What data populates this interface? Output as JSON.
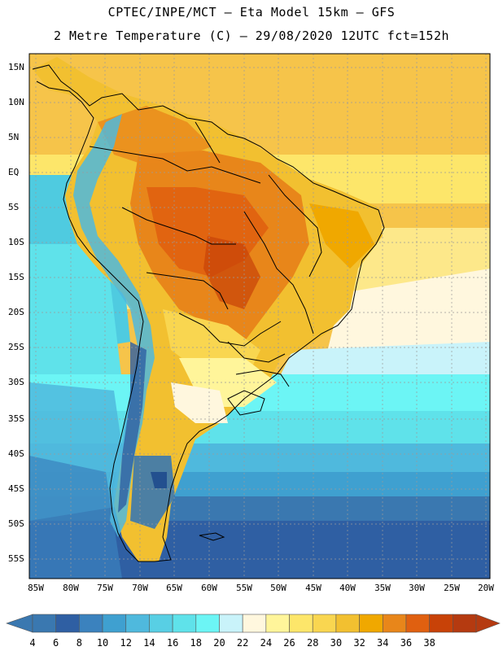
{
  "header": {
    "line1": "CPTEC/INPE/MCT –  Eta Model 15km – GFS",
    "line2": "2 Metre Temperature (C) – 29/08/2020 12UTC fct=152h"
  },
  "map": {
    "region": "South America",
    "lat_labels": [
      "15N",
      "10N",
      "5N",
      "EQ",
      "5S",
      "10S",
      "15S",
      "20S",
      "25S",
      "30S",
      "35S",
      "40S",
      "45S",
      "50S",
      "55S"
    ],
    "lon_labels": [
      "85W",
      "80W",
      "75W",
      "70W",
      "65W",
      "60W",
      "55W",
      "50W",
      "45W",
      "40W",
      "35W",
      "30W",
      "25W",
      "20W"
    ]
  },
  "colorbar": {
    "labels": [
      "4",
      "6",
      "8",
      "10",
      "12",
      "14",
      "16",
      "18",
      "20",
      "22",
      "24",
      "26",
      "28",
      "30",
      "32",
      "34",
      "36",
      "38"
    ],
    "colors": [
      "#3a78b0",
      "#2f5fa3",
      "#3b82be",
      "#3fa0d0",
      "#4fb9dd",
      "#58cfe4",
      "#5fe2ea",
      "#6cf5f5",
      "#c9f3fa",
      "#fff7de",
      "#fff59a",
      "#fde66a",
      "#f9d650",
      "#f2c030",
      "#f0a800",
      "#e8861a",
      "#e06010",
      "#c84208",
      "#b53a10"
    ]
  }
}
